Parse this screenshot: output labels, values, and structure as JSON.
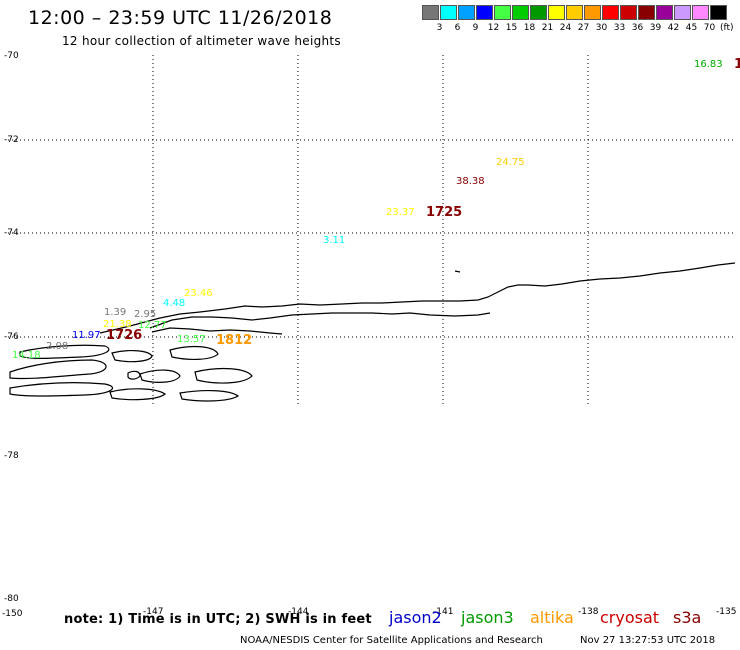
{
  "header": {
    "title": "12:00 – 23:59 UTC 11/26/2018",
    "subtitle": "12 hour collection of altimeter wave heights"
  },
  "color_scale": {
    "colors": [
      "#777777",
      "#00ffff",
      "#00a0ff",
      "#0000ff",
      "#44ff44",
      "#00cc00",
      "#009900",
      "#ffff00",
      "#ffcc00",
      "#ff9900",
      "#ff0000",
      "#cc0000",
      "#880000",
      "#990099",
      "#cc99ff",
      "#ff88ff",
      "#000000"
    ],
    "labels": [
      "3",
      "6",
      "9",
      "12",
      "15",
      "18",
      "21",
      "24",
      "27",
      "30",
      "33",
      "36",
      "39",
      "42",
      "45",
      "70"
    ],
    "unit": "(ft)"
  },
  "axes": {
    "lat_labels": [
      "-70",
      "-72",
      "-74",
      "-76",
      "-78",
      "-80"
    ],
    "lon_labels": [
      "-150",
      "-147",
      "-144",
      "-141",
      "-138",
      "-135"
    ]
  },
  "observations": [
    {
      "text": "16.83",
      "color": "#00aa00"
    },
    {
      "text": "1",
      "color": "#880000"
    },
    {
      "text": "24.75",
      "color": "#ffcc00"
    },
    {
      "text": "38.38",
      "color": "#880000"
    },
    {
      "text": "23.37",
      "color": "#ffff00"
    },
    {
      "text": "1725",
      "color": "#880000"
    },
    {
      "text": "3.11",
      "color": "#00ffff"
    },
    {
      "text": "23.46",
      "color": "#ffff00"
    },
    {
      "text": "4.48",
      "color": "#00ffff"
    },
    {
      "text": "1.39",
      "color": "#777777"
    },
    {
      "text": "2.95",
      "color": "#777777"
    },
    {
      "text": "21.38",
      "color": "#ffff00"
    },
    {
      "text": "12.77",
      "color": "#44ff44"
    },
    {
      "text": "11.97",
      "color": "#0000ff"
    },
    {
      "text": "1726",
      "color": "#880000"
    },
    {
      "text": "2.08",
      "color": "#777777"
    },
    {
      "text": "13.57",
      "color": "#44ff44"
    },
    {
      "text": "1812",
      "color": "#ff9900"
    },
    {
      "text": "14.18",
      "color": "#44ff44"
    }
  ],
  "footer": {
    "note": "note:  1) Time is in UTC;  2) SWH is in feet",
    "satellites": [
      {
        "name": "jason2",
        "color": "#0000cc"
      },
      {
        "name": "jason3",
        "color": "#009900"
      },
      {
        "name": "altika",
        "color": "#ff9900"
      },
      {
        "name": "cryosat",
        "color": "#cc0000"
      },
      {
        "name": "s3a",
        "color": "#880000"
      }
    ],
    "credit": "NOAA/NESDIS Center for Satellite Applications and Research",
    "timestamp": "Nov 27 13:27:53 UTC 2018"
  }
}
